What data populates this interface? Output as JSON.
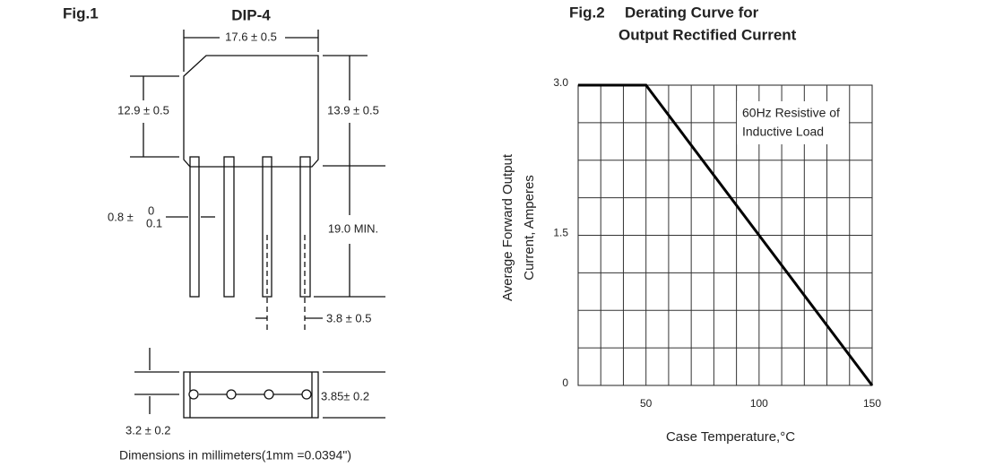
{
  "figure1": {
    "title": "Fig.1",
    "package": "DIP-4",
    "dimensions": [
      "17.6 ± 0.5",
      "12.9 ± 0.5",
      "13.9 ± 0.5",
      "0.8 ±",
      "0",
      "0.1",
      "19.0  MIN.",
      "3.8 ± 0.5",
      "3.85± 0.2",
      "3.2 ± 0.2"
    ],
    "note": "Dimensions in millimeters(1mm =0.0394\")"
  },
  "chart_data": {
    "type": "line",
    "figure": "Fig.2",
    "title": [
      "Derating Curve for",
      "Output Rectified Current"
    ],
    "ylabel": [
      "Average Forward Output",
      "Current, Amperes"
    ],
    "xlabel": "Case Temperature,°C",
    "annotation": [
      "60Hz Resistive of",
      "Inductive Load"
    ],
    "x": [
      20,
      50,
      150
    ],
    "values": [
      3,
      3,
      0
    ],
    "color": "#000000",
    "xlim": [
      20,
      150
    ],
    "ylim": [
      0,
      3
    ],
    "xticks": [
      50,
      100,
      150
    ],
    "yticks": [
      0,
      1.5,
      {
        "value": 3,
        "label": "3.0"
      }
    ],
    "xgrid": [
      30,
      40,
      50,
      60,
      70,
      80,
      90,
      100,
      110,
      120,
      130,
      140
    ],
    "ygrid": [
      0.375,
      0.75,
      1.125,
      1.5,
      1.875,
      2.25,
      2.625
    ]
  }
}
